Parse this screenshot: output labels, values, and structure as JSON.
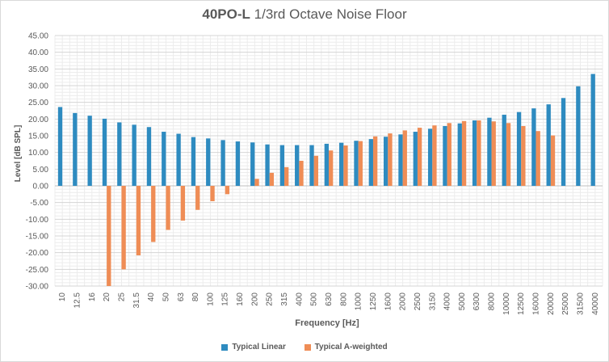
{
  "chart_data": {
    "type": "bar",
    "title_bold": "40PO-L",
    "title_rest": "1/3rd Octave Noise Floor",
    "xlabel": "Frequency [Hz]",
    "ylabel": "Level [dB SPL]",
    "ylim": [
      -30,
      45
    ],
    "ytick_step": 5,
    "ytick_labels": [
      "45.00",
      "40.00",
      "35.00",
      "30.00",
      "25.00",
      "20.00",
      "15.00",
      "10.00",
      "5.00",
      "0.00",
      "-5.00",
      "-10.00",
      "-15.00",
      "-20.00",
      "-25.00",
      "-30.00"
    ],
    "grid": true,
    "legend_position": "bottom",
    "categories": [
      "10",
      "12.5",
      "16",
      "20",
      "25",
      "31.5",
      "40",
      "50",
      "63",
      "80",
      "100",
      "125",
      "160",
      "200",
      "250",
      "315",
      "400",
      "500",
      "630",
      "800",
      "1000",
      "1250",
      "1600",
      "2000",
      "2500",
      "3150",
      "4000",
      "5000",
      "6300",
      "8000",
      "10000",
      "12500",
      "16000",
      "20000",
      "25000",
      "31500",
      "40000"
    ],
    "series": [
      {
        "name": "Typical Linear",
        "color": "#2e8bc0",
        "values": [
          23.6,
          21.8,
          21.0,
          20.1,
          19.0,
          18.3,
          17.6,
          16.2,
          15.6,
          14.6,
          14.2,
          13.7,
          13.3,
          13.0,
          12.4,
          12.2,
          12.2,
          12.2,
          12.6,
          12.9,
          13.5,
          14.0,
          14.7,
          15.4,
          16.2,
          17.1,
          17.9,
          18.7,
          19.6,
          20.4,
          21.3,
          22.1,
          23.2,
          24.4,
          26.3,
          29.8,
          33.5
        ]
      },
      {
        "name": "Typical A-weighted",
        "color": "#ef8d56",
        "values": [
          null,
          null,
          null,
          -30.0,
          -25.0,
          -20.8,
          -16.8,
          -13.2,
          -10.4,
          -7.2,
          -4.6,
          -2.5,
          null,
          2.1,
          3.9,
          5.6,
          7.5,
          9.0,
          10.6,
          12.1,
          13.4,
          14.8,
          15.7,
          16.6,
          17.4,
          18.1,
          18.8,
          19.4,
          19.6,
          19.3,
          18.8,
          17.9,
          16.4,
          15.1,
          null,
          null,
          null
        ]
      }
    ]
  }
}
